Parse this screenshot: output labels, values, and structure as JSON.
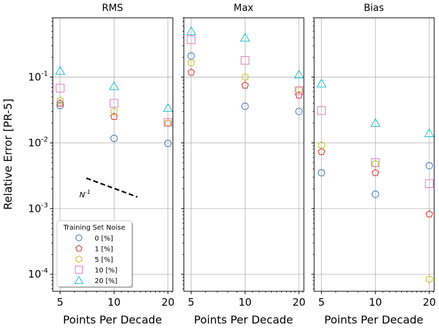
{
  "chart_data": [
    {
      "type": "scatter",
      "title": "RMS",
      "ylabel": "Relative Error  [PR-5]",
      "xlabel": "Points Per Decade",
      "xscale": "log",
      "yscale": "log",
      "xlim": [
        4.55,
        21.3
      ],
      "ylim": [
        5.5e-05,
        0.8
      ],
      "xticks": [
        5,
        10,
        20
      ],
      "yticks": [
        "10^{-4}",
        "10^{-3}",
        "10^{-2}",
        "10^{-1}"
      ],
      "grid": true,
      "series": [
        {
          "name": "0 [%]",
          "x": [
            5,
            10,
            20
          ],
          "y": [
            0.037,
            0.0117,
            0.0098
          ]
        },
        {
          "name": "1 [%]",
          "x": [
            5,
            10,
            20
          ],
          "y": [
            0.04,
            0.025,
            0.02
          ]
        },
        {
          "name": "5 [%]",
          "x": [
            5,
            10,
            20
          ],
          "y": [
            0.044,
            0.03,
            0.02
          ]
        },
        {
          "name": "10 [%]",
          "x": [
            5,
            10,
            20
          ],
          "y": [
            0.068,
            0.04,
            0.0205
          ]
        },
        {
          "name": "20 [%]",
          "x": [
            5,
            10,
            20
          ],
          "y": [
            0.125,
            0.073,
            0.034
          ]
        }
      ],
      "reference_line": {
        "label": "N^{-1}",
        "x": [
          7.0,
          13.5
        ],
        "y": [
          0.0029,
          0.0015
        ]
      },
      "legend": {
        "title": "Training Set Noise",
        "location": "lower-left"
      }
    },
    {
      "type": "scatter",
      "title": "Max",
      "xlabel": "Points Per Decade",
      "xscale": "log",
      "yscale": "log",
      "xlim": [
        4.55,
        21.3
      ],
      "ylim": [
        5.5e-05,
        0.8
      ],
      "xticks": [
        5,
        10,
        20
      ],
      "grid": true,
      "series": [
        {
          "name": "0 [%]",
          "x": [
            5,
            10,
            20
          ],
          "y": [
            0.21,
            0.036,
            0.03
          ]
        },
        {
          "name": "1 [%]",
          "x": [
            5,
            10,
            20
          ],
          "y": [
            0.118,
            0.075,
            0.053
          ]
        },
        {
          "name": "5 [%]",
          "x": [
            5,
            10,
            20
          ],
          "y": [
            0.165,
            0.1,
            0.064
          ]
        },
        {
          "name": "10 [%]",
          "x": [
            5,
            10,
            20
          ],
          "y": [
            0.37,
            0.18,
            0.062
          ]
        },
        {
          "name": "20 [%]",
          "x": [
            5,
            10,
            20
          ],
          "y": [
            0.5,
            0.4,
            0.11
          ]
        }
      ]
    },
    {
      "type": "scatter",
      "title": "Bias",
      "xlabel": "Points Per Decade",
      "xscale": "log",
      "yscale": "log",
      "xlim": [
        4.55,
        21.3
      ],
      "ylim": [
        5.5e-05,
        0.8
      ],
      "xticks": [
        5,
        10,
        20
      ],
      "grid": true,
      "series": [
        {
          "name": "0 [%]",
          "x": [
            5,
            10,
            20
          ],
          "y": [
            0.0035,
            0.00165,
            0.0045
          ]
        },
        {
          "name": "1 [%]",
          "x": [
            5,
            10,
            20
          ],
          "y": [
            0.0073,
            0.0035,
            0.00082
          ]
        },
        {
          "name": "5 [%]",
          "x": [
            5,
            10,
            20
          ],
          "y": [
            0.0092,
            0.0048,
            8.4e-05
          ]
        },
        {
          "name": "10 [%]",
          "x": [
            5,
            10,
            20
          ],
          "y": [
            0.031,
            0.005,
            0.0024
          ]
        },
        {
          "name": "20 [%]",
          "x": [
            5,
            10,
            20
          ],
          "y": [
            0.08,
            0.02,
            0.014
          ]
        }
      ]
    }
  ],
  "series_styles": [
    {
      "marker": "circle",
      "color": "#3b73b3"
    },
    {
      "marker": "pentagon",
      "color": "#d62728"
    },
    {
      "marker": "hexagon",
      "color": "#bcbd22"
    },
    {
      "marker": "square",
      "color": "#e377c2"
    },
    {
      "marker": "triangle",
      "color": "#17becf"
    }
  ],
  "colors": {
    "grid": "#b0b0b0",
    "reference_line": "#000000"
  }
}
